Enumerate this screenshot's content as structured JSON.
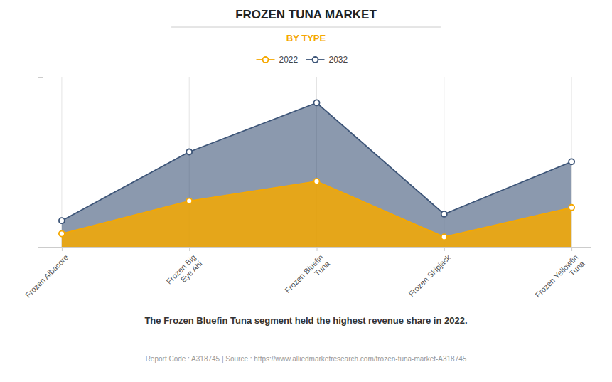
{
  "chart_data": {
    "type": "area",
    "title": "FROZEN TUNA MARKET",
    "subtitle": "BY TYPE",
    "categories": [
      "Frozen Albacore",
      "Frozen Big\nEye Ahi",
      "Frozen Bluefin\nTuna",
      "Frozen Skipjack",
      "Frozen Yellowfin\nTuna"
    ],
    "series": [
      {
        "name": "2022",
        "color": "#F5A800",
        "marker": "circle",
        "values": [
          8,
          28,
          40,
          6,
          24
        ]
      },
      {
        "name": "2032",
        "color": "#3D5578",
        "marker": "circle",
        "values": [
          16,
          58,
          88,
          20,
          52
        ]
      }
    ],
    "ylim": [
      0,
      103.84
    ],
    "yticks": [],
    "tick_labels": "x",
    "grid": true,
    "legend": "top",
    "annotations": [
      "The Frozen Bluefin Tuna segment held the highest revenue share in 2022.",
      "Report Code : A318745  |  Source : https://www.alliedmarketresearch.com/frozen-tuna-market-A318745"
    ]
  }
}
